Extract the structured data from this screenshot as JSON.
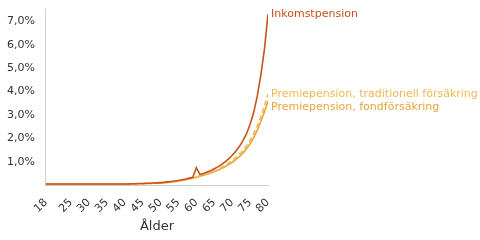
{
  "chart_data": {
    "type": "line",
    "x_label": "Ålder",
    "x": [
      18,
      19,
      20,
      21,
      22,
      23,
      24,
      25,
      26,
      27,
      28,
      29,
      30,
      31,
      32,
      33,
      34,
      35,
      36,
      37,
      38,
      39,
      40,
      41,
      42,
      43,
      44,
      45,
      46,
      47,
      48,
      49,
      50,
      51,
      52,
      53,
      54,
      55,
      56,
      57,
      58,
      59,
      60,
      61,
      62,
      63,
      64,
      65,
      66,
      67,
      68,
      69,
      70,
      71,
      72,
      73,
      74,
      75,
      76,
      77,
      78,
      79,
      80
    ],
    "xlim": [
      18,
      80
    ],
    "xticks": [
      18,
      25,
      30,
      35,
      40,
      45,
      50,
      55,
      60,
      65,
      70,
      75,
      80
    ],
    "ylim": [
      0,
      7.5
    ],
    "yticks": [
      {
        "value": 1,
        "label": "1,0%"
      },
      {
        "value": 2,
        "label": "2,0%"
      },
      {
        "value": 3,
        "label": "3,0%"
      },
      {
        "value": 4,
        "label": "4,0%"
      },
      {
        "value": 5,
        "label": "5,0%"
      },
      {
        "value": 6,
        "label": "6,0%"
      },
      {
        "value": 7,
        "label": "7,0%"
      }
    ],
    "grid": false,
    "series": [
      {
        "name": "Inkomstpension",
        "color": "#c8511b",
        "line_style": "solid",
        "values": [
          0.05,
          0.05,
          0.05,
          0.05,
          0.05,
          0.05,
          0.05,
          0.05,
          0.05,
          0.05,
          0.05,
          0.05,
          0.05,
          0.05,
          0.05,
          0.05,
          0.05,
          0.05,
          0.05,
          0.05,
          0.05,
          0.05,
          0.05,
          0.05,
          0.06,
          0.06,
          0.07,
          0.07,
          0.08,
          0.08,
          0.09,
          0.1,
          0.11,
          0.12,
          0.14,
          0.16,
          0.18,
          0.2,
          0.23,
          0.26,
          0.3,
          0.34,
          0.75,
          0.45,
          0.5,
          0.56,
          0.62,
          0.7,
          0.78,
          0.88,
          1.0,
          1.12,
          1.28,
          1.45,
          1.65,
          1.9,
          2.2,
          2.6,
          3.1,
          3.8,
          4.7,
          5.8,
          7.3
        ]
      },
      {
        "name": "Premiepension, traditionell försäkring",
        "color": "#f2b84b",
        "line_style": "dashed",
        "values": [
          0.04,
          0.04,
          0.04,
          0.04,
          0.04,
          0.04,
          0.04,
          0.04,
          0.04,
          0.04,
          0.04,
          0.04,
          0.04,
          0.04,
          0.04,
          0.04,
          0.04,
          0.04,
          0.04,
          0.04,
          0.04,
          0.04,
          0.04,
          0.05,
          0.05,
          0.05,
          0.06,
          0.06,
          0.07,
          0.07,
          0.08,
          0.09,
          0.1,
          0.11,
          0.12,
          0.14,
          0.16,
          0.18,
          0.2,
          0.23,
          0.26,
          0.3,
          0.35,
          0.39,
          0.44,
          0.49,
          0.55,
          0.61,
          0.68,
          0.76,
          0.85,
          0.95,
          1.06,
          1.18,
          1.32,
          1.49,
          1.68,
          1.92,
          2.2,
          2.54,
          2.93,
          3.37,
          3.9
        ]
      },
      {
        "name": "Premiepension, fondförsäkring",
        "color": "#e8a33a",
        "line_style": "solid",
        "values": [
          0.04,
          0.04,
          0.04,
          0.04,
          0.04,
          0.04,
          0.04,
          0.04,
          0.04,
          0.04,
          0.04,
          0.04,
          0.04,
          0.04,
          0.04,
          0.04,
          0.04,
          0.04,
          0.04,
          0.04,
          0.04,
          0.04,
          0.04,
          0.05,
          0.05,
          0.05,
          0.06,
          0.06,
          0.07,
          0.07,
          0.08,
          0.09,
          0.1,
          0.11,
          0.12,
          0.14,
          0.16,
          0.18,
          0.2,
          0.23,
          0.26,
          0.3,
          0.34,
          0.38,
          0.42,
          0.47,
          0.52,
          0.58,
          0.64,
          0.71,
          0.79,
          0.88,
          0.98,
          1.09,
          1.22,
          1.37,
          1.55,
          1.77,
          2.03,
          2.35,
          2.72,
          3.13,
          3.6
        ]
      }
    ]
  }
}
